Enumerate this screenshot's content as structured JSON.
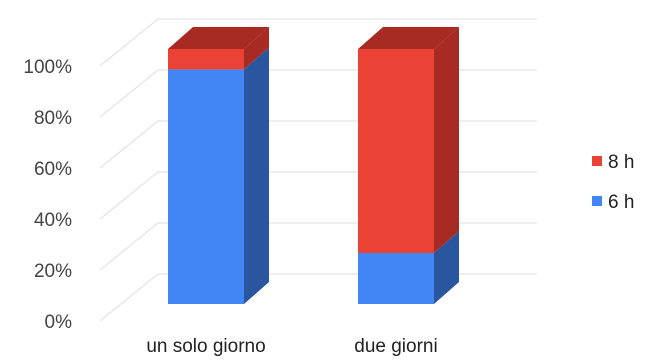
{
  "chart_data": {
    "type": "bar",
    "stacked": true,
    "normalized": true,
    "three_d": true,
    "categories": [
      "un solo giorno",
      "due giorni"
    ],
    "series": [
      {
        "name": "6 h",
        "values": [
          92,
          20
        ],
        "color": "#4285F4",
        "side_color": "#2A56A0"
      },
      {
        "name": "8 h",
        "values": [
          8,
          80
        ],
        "color": "#EA4335",
        "side_color": "#A72B22"
      }
    ],
    "y_ticks": [
      "0%",
      "20%",
      "40%",
      "60%",
      "80%",
      "100%"
    ],
    "ylim": [
      0,
      100
    ],
    "grid": true,
    "legend_position": "right",
    "legend_order": [
      "8 h",
      "6 h"
    ]
  }
}
